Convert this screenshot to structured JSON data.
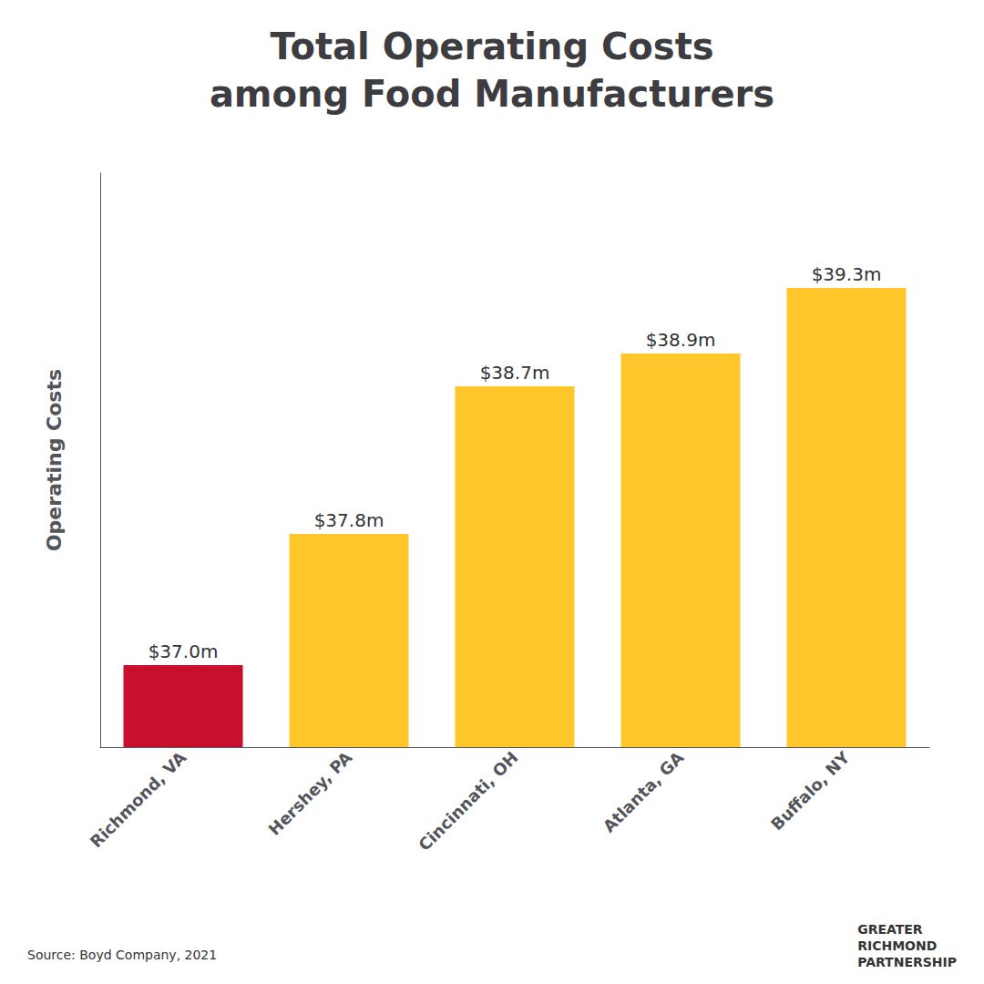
{
  "chart_data": {
    "type": "bar",
    "title": "Total Operating Costs\namong Food Manufacturers",
    "categories": [
      "Richmond, VA",
      "Hershey, PA",
      "Cincinnati, OH",
      "Atlanta, GA",
      "Buffalo, NY"
    ],
    "values": [
      37.0,
      37.8,
      38.7,
      38.9,
      39.3
    ],
    "value_labels": [
      "$37.0m",
      "$37.8m",
      "$38.7m",
      "$38.9m",
      "$39.3m"
    ],
    "data_labels": true,
    "colors": [
      "#C8102E",
      "#FFC72C",
      "#FFC72C",
      "#FFC72C",
      "#FFC72C"
    ],
    "ylabel": "Operating Costs",
    "ylim": [
      36.5,
      40.0
    ],
    "tick_labels": "x",
    "grid": false,
    "annotations": [
      "Source: Boyd Company, 2021",
      "GREATER\nRICHMOND\nPARTNERSHIP"
    ]
  }
}
